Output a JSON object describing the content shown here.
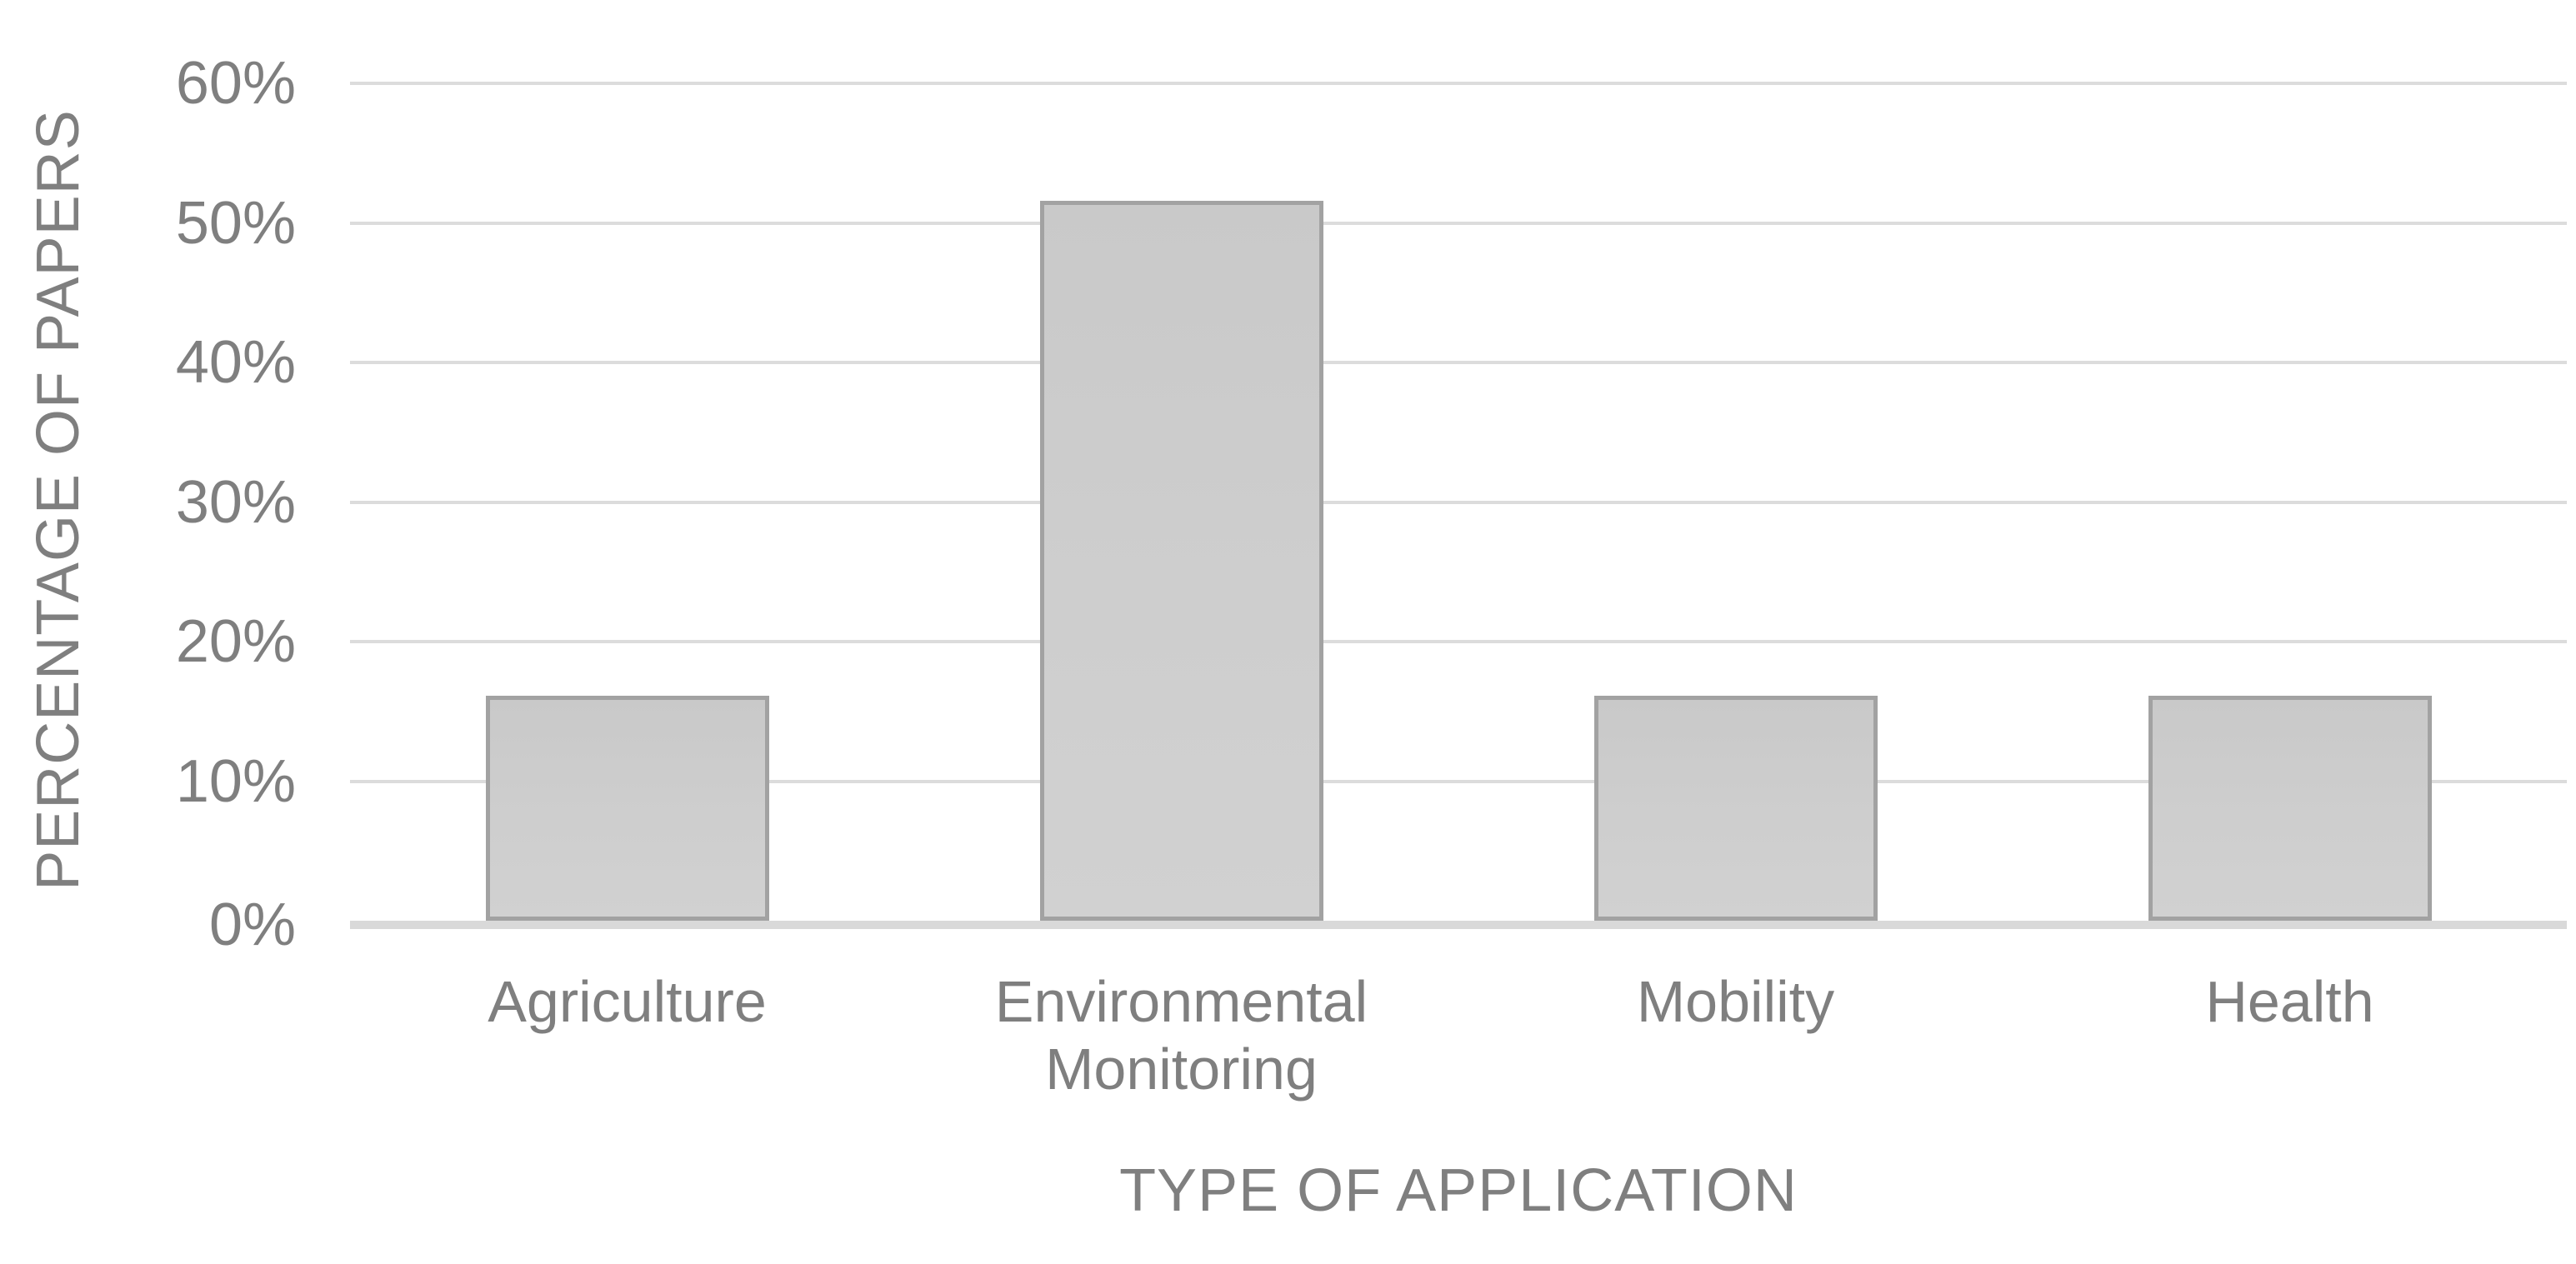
{
  "chart_data": {
    "type": "bar",
    "title": "",
    "categories": [
      "Agriculture",
      "Environmental Monitoring",
      "Mobility",
      "Health"
    ],
    "values": [
      16.1,
      51.6,
      16.1,
      16.1
    ],
    "xlabel": "TYPE OF APPLICATION",
    "ylabel": "PERCENTAGE OF PAPERS",
    "ylim": [
      0,
      60
    ],
    "ytick_step": 10,
    "ytick_labels": [
      "0%",
      "10%",
      "20%",
      "30%",
      "40%",
      "50%",
      "60%"
    ],
    "grid": true,
    "legend": false,
    "bar_unit": "percent of papers",
    "colors": {
      "bar_fill": "#cdcdcd",
      "bar_border": "#a2a2a2",
      "gridline": "#dcdcdc",
      "axis_line": "#d9d9d9",
      "text": "#7f7f7f",
      "background": "#ffffff"
    }
  }
}
